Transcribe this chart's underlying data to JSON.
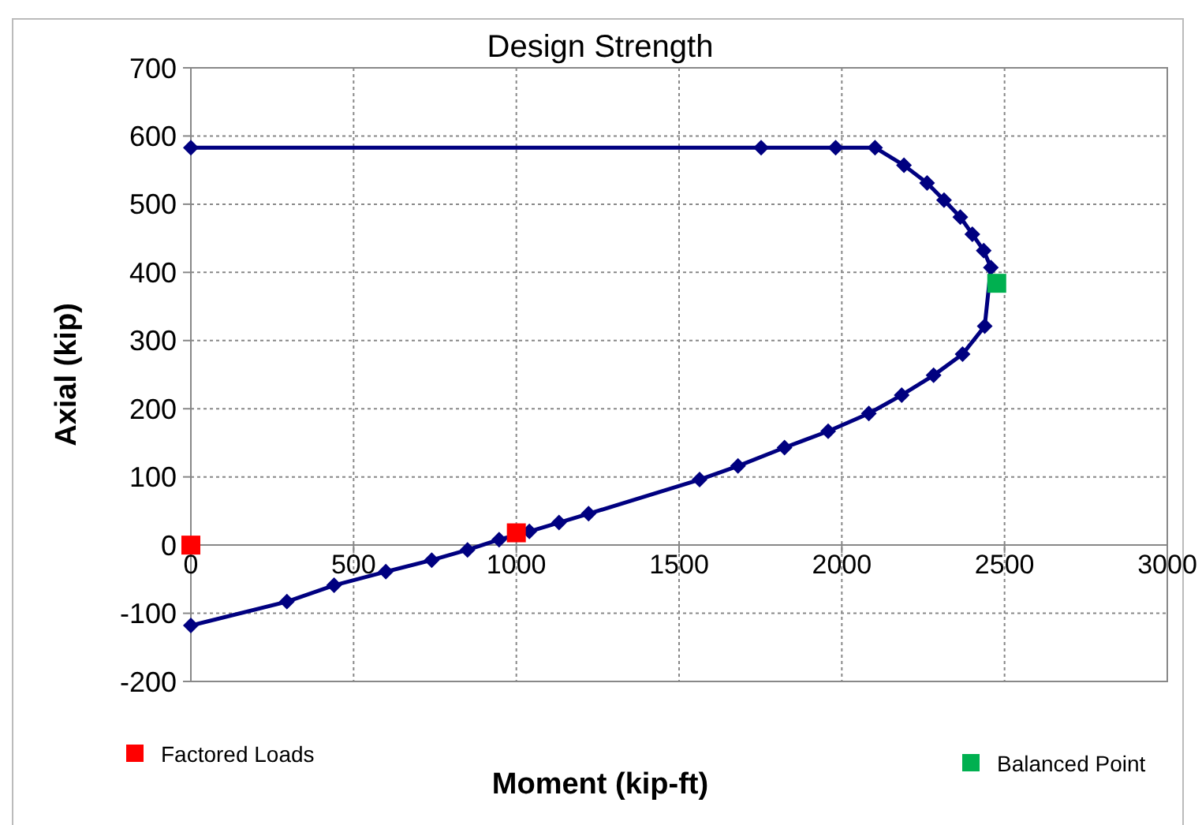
{
  "chart_data": {
    "type": "line",
    "title": "Design Strength",
    "xlabel": "Moment (kip-ft)",
    "ylabel": "Axial (kip)",
    "xlim": [
      0,
      3000
    ],
    "xticks": [
      0,
      500,
      1000,
      1500,
      2000,
      2500,
      3000
    ],
    "ylim": [
      -200,
      700
    ],
    "yticks": [
      -200,
      -100,
      0,
      100,
      200,
      300,
      400,
      500,
      600,
      700
    ],
    "grid": true,
    "legend": "bottom",
    "marker": "diamond",
    "line_style": "solid",
    "series": [
      {
        "color": "#000080",
        "x": [
          0,
          1752,
          1981,
          2102,
          2191,
          2262,
          2314,
          2364,
          2401,
          2436,
          2458,
          2439,
          2371,
          2282,
          2184,
          2083,
          1958,
          1824,
          1681,
          1563,
          1222,
          1131,
          1040,
          947,
          850,
          740,
          599,
          440,
          295,
          0
        ],
        "values": [
          583,
          583,
          583,
          583,
          557,
          531,
          506,
          481,
          456,
          432,
          407,
          321,
          280,
          249,
          220,
          193,
          167,
          143,
          116,
          96,
          46,
          33,
          20,
          8,
          -7,
          -22,
          -39,
          -59,
          -83,
          -118
        ]
      },
      {
        "name": "Factored Loads",
        "type": "scatter",
        "marker": "square",
        "color": "#ff0000",
        "x": [
          0,
          1000
        ],
        "values": [
          0,
          18
        ]
      },
      {
        "name": "Balanced Point",
        "type": "scatter",
        "marker": "square",
        "color": "#00b050",
        "x": [
          2476
        ],
        "values": [
          384
        ]
      }
    ]
  }
}
